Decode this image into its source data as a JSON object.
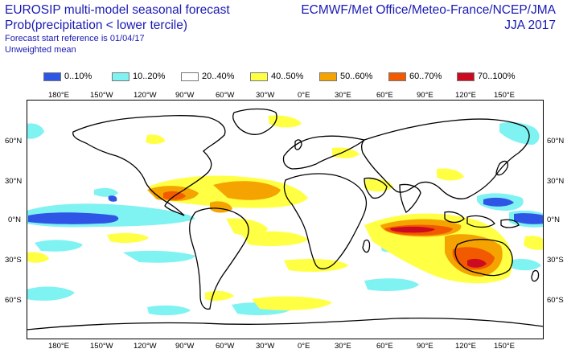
{
  "header": {
    "title_line1": "EUROSIP multi-model seasonal forecast",
    "title_line2": "Prob(precipitation < lower tercile)",
    "forecast_ref": "Forecast start reference is 01/04/17",
    "weighting": "Unweighted mean",
    "centres": "ECMWF/Met Office/Meteo-France/NCEP/JMA",
    "season": "JJA 2017"
  },
  "legend": [
    {
      "label": "0..10%",
      "color": "#2f55e6"
    },
    {
      "label": "10..20%",
      "color": "#7ff2f2"
    },
    {
      "label": "20..40%",
      "color": "#ffffff"
    },
    {
      "label": "40..50%",
      "color": "#ffff44"
    },
    {
      "label": "50..60%",
      "color": "#f5a300"
    },
    {
      "label": "60..70%",
      "color": "#f25a00"
    },
    {
      "label": "70..100%",
      "color": "#cc0a20"
    }
  ],
  "axes": {
    "lon_labels": [
      "180°E",
      "150°W",
      "120°W",
      "90°W",
      "60°W",
      "30°W",
      "0°E",
      "30°E",
      "60°E",
      "90°E",
      "120°E",
      "150°E"
    ],
    "lat_labels_left": [
      "60°N",
      "30°N",
      "0°N",
      "30°S",
      "60°S"
    ],
    "lat_labels_right": [
      "60°N",
      "30°N",
      "0°N",
      "30°S",
      "60°S"
    ]
  }
}
